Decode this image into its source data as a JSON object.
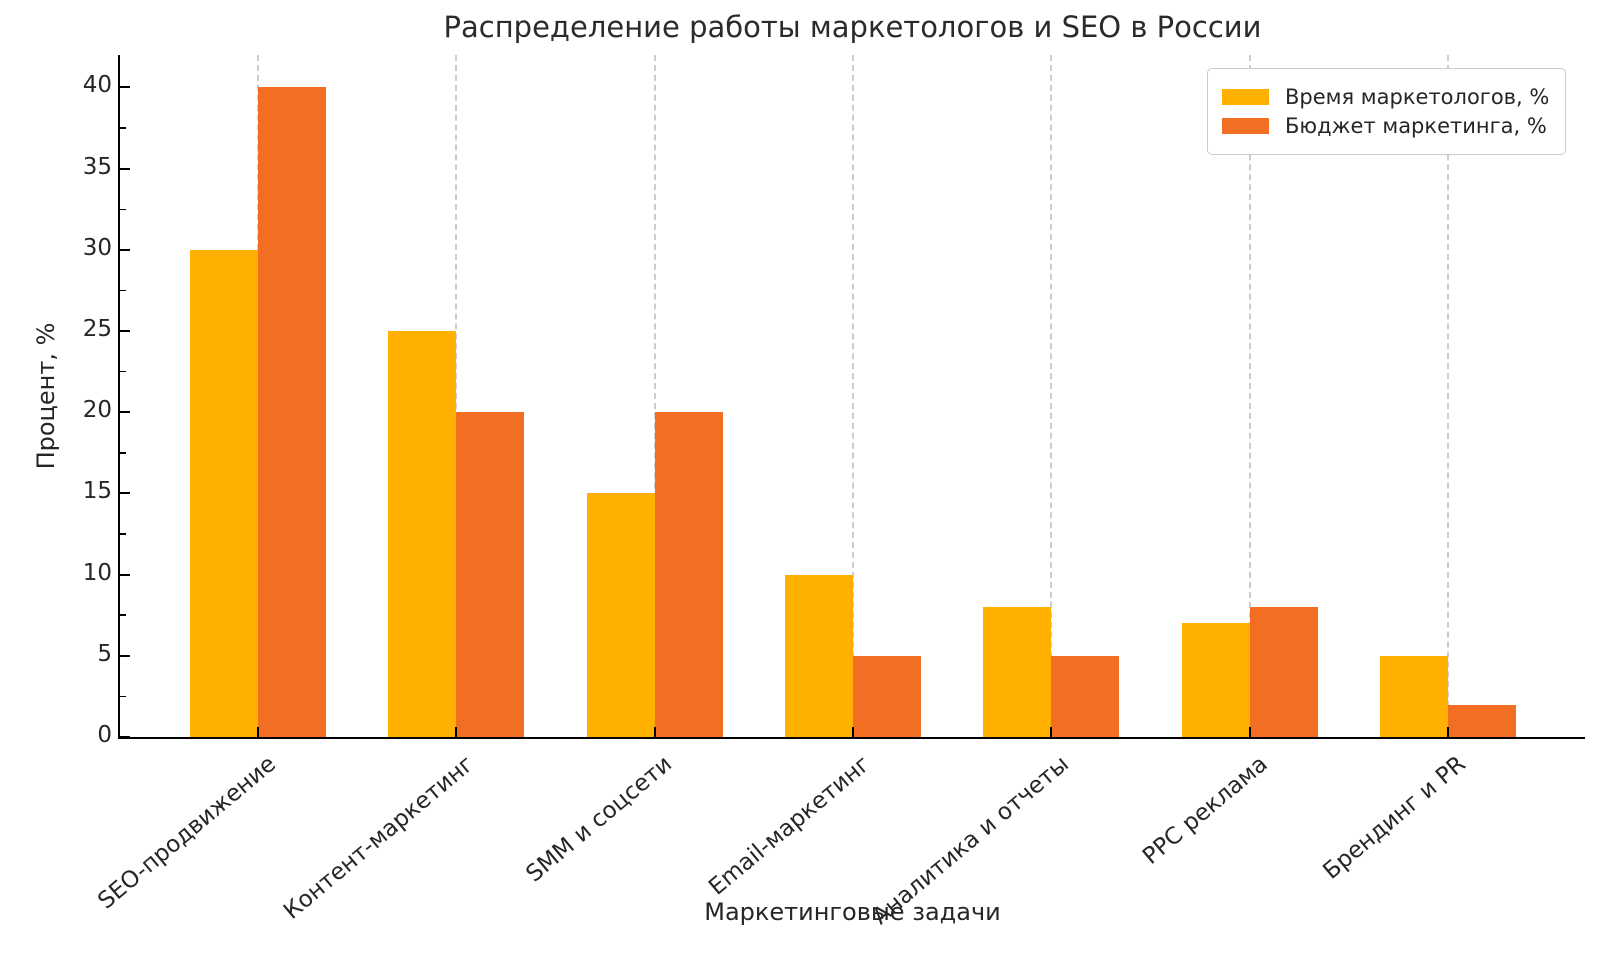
{
  "chart_data": {
    "type": "bar",
    "title": "Распределение работы маркетологов и SEO в России",
    "xlabel": "Маркетинговые задачи",
    "ylabel": "Процент, %",
    "categories": [
      "SEO-продвижение",
      "Контент-маркетинг",
      "SMM и соцсети",
      "Email-маркетинг",
      "Аналитика и отчеты",
      "PPC реклама",
      "Брендинг и PR"
    ],
    "series": [
      {
        "name": "Время маркетологов, %",
        "color": "#FFB000",
        "values": [
          30,
          25,
          15,
          10,
          8,
          7,
          5
        ]
      },
      {
        "name": "Бюджет маркетинга, %",
        "color": "#F26E22",
        "values": [
          40,
          20,
          20,
          5,
          5,
          8,
          2
        ]
      }
    ],
    "ylim": [
      0,
      42
    ],
    "yticks": [
      0,
      5,
      10,
      15,
      20,
      25,
      30,
      35,
      40
    ],
    "ytick_minor_step": 2.5,
    "grid": "vertical-dashed",
    "gridline_color": "#cccccc",
    "legend_position": "top-right",
    "background_color": "#ffffff",
    "text_color": "#262626"
  }
}
